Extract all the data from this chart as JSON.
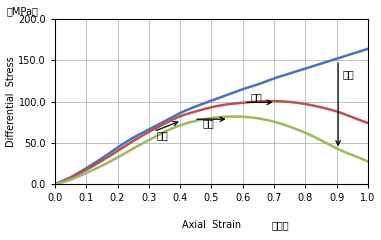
{
  "xlabel_part1": "Axial  Strain",
  "xlabel_part2": "（％）",
  "ylabel_top": "（MPa）",
  "ylabel_rot": "Differential  Stress",
  "xlim": [
    0.0,
    1.0
  ],
  "ylim": [
    0.0,
    200.0
  ],
  "xticks": [
    0.0,
    0.1,
    0.2,
    0.3,
    0.4,
    0.5,
    0.6,
    0.7,
    0.8,
    0.9,
    1.0
  ],
  "yticks": [
    0.0,
    50.0,
    100.0,
    150.0,
    200.0
  ],
  "blue_x": [
    0.0,
    0.05,
    0.1,
    0.15,
    0.2,
    0.25,
    0.3,
    0.35,
    0.4,
    0.45,
    0.5,
    0.55,
    0.6,
    0.65,
    0.7,
    0.75,
    0.8,
    0.85,
    0.9,
    0.95,
    1.0
  ],
  "blue_y": [
    0.0,
    8.0,
    19.0,
    31.0,
    44.0,
    56.0,
    66.0,
    76.0,
    86.0,
    94.0,
    101.0,
    108.0,
    115.0,
    121.0,
    128.0,
    134.0,
    140.0,
    146.0,
    152.0,
    158.0,
    164.0
  ],
  "pink_x": [
    0.0,
    0.05,
    0.1,
    0.15,
    0.2,
    0.25,
    0.3,
    0.35,
    0.4,
    0.45,
    0.5,
    0.55,
    0.6,
    0.65,
    0.7,
    0.75,
    0.8,
    0.85,
    0.9,
    0.95,
    1.0
  ],
  "pink_y": [
    0.0,
    7.0,
    17.0,
    28.0,
    40.0,
    52.0,
    63.0,
    73.0,
    82.0,
    88.0,
    93.0,
    96.5,
    98.5,
    100.0,
    100.5,
    99.5,
    97.0,
    93.0,
    88.0,
    81.0,
    74.0
  ],
  "green_x": [
    0.0,
    0.05,
    0.1,
    0.15,
    0.2,
    0.25,
    0.3,
    0.35,
    0.4,
    0.45,
    0.5,
    0.55,
    0.6,
    0.65,
    0.7,
    0.75,
    0.8,
    0.85,
    0.9,
    0.95,
    1.0
  ],
  "green_y": [
    0.0,
    5.0,
    13.0,
    22.0,
    32.0,
    43.0,
    53.0,
    63.0,
    71.0,
    76.5,
    80.0,
    81.5,
    81.5,
    79.5,
    75.5,
    69.5,
    62.0,
    53.0,
    43.0,
    35.0,
    27.0
  ],
  "blue_color": "#4472C4",
  "pink_color": "#C0504D",
  "green_color": "#9BBB59",
  "line_width": 1.8,
  "bg_color": "#FFFFFF",
  "grid_color": "#AAAAAA",
  "annot_antei_text": "安定",
  "annot_hasan1_text": "発散",
  "annot_hasan2_text": "発散",
  "annot_jikan_text": "時間"
}
